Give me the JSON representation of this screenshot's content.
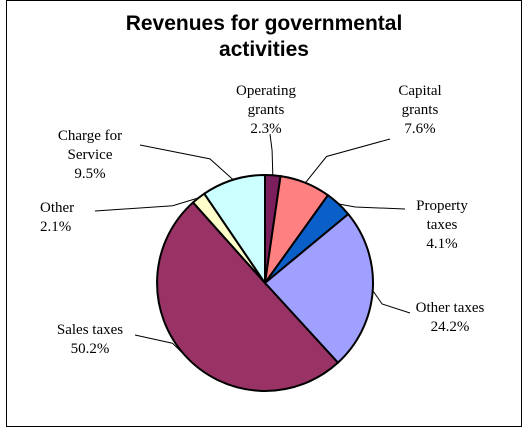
{
  "chart_data": {
    "type": "pie",
    "title_lines": [
      "Revenues for governmental",
      "activities"
    ],
    "slices": [
      {
        "label_lines": [
          "Operating",
          "grants"
        ],
        "value": 2.3,
        "value_text": "2.3%",
        "color": "#7a1f5c"
      },
      {
        "label_lines": [
          "Capital",
          "grants"
        ],
        "value": 7.6,
        "value_text": "7.6%",
        "color": "#ff8080"
      },
      {
        "label_lines": [
          "Property",
          "taxes"
        ],
        "value": 4.1,
        "value_text": "4.1%",
        "color": "#0a5fc8"
      },
      {
        "label_lines": [
          "Other taxes"
        ],
        "value": 24.2,
        "value_text": "24.2%",
        "color": "#a0a0ff"
      },
      {
        "label_lines": [
          "Sales taxes"
        ],
        "value": 50.2,
        "value_text": "50.2%",
        "color": "#993366"
      },
      {
        "label_lines": [
          "Other"
        ],
        "value": 2.1,
        "value_text": "2.1%",
        "color": "#ffffcc"
      },
      {
        "label_lines": [
          "Charge for",
          "Service"
        ],
        "value": 9.5,
        "value_text": "9.5%",
        "color": "#ccffff"
      }
    ],
    "legend": "none"
  }
}
